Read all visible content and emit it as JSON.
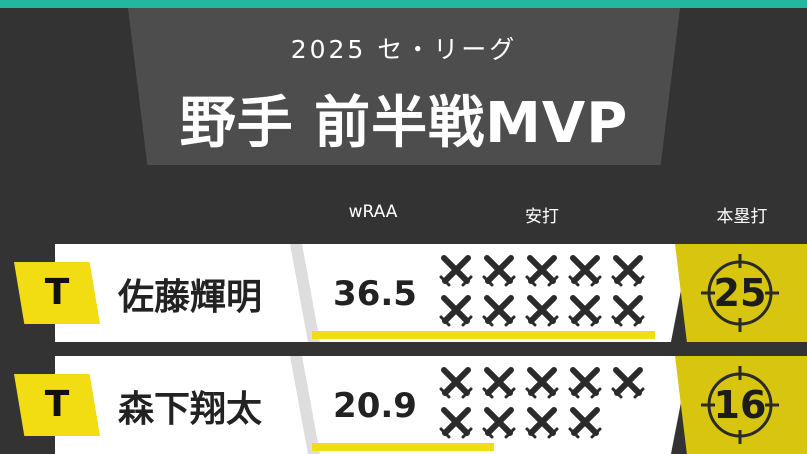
{
  "header": {
    "subtitle": "2025 セ・リーグ",
    "title": "野手 前半戦MVP"
  },
  "columns": {
    "wraa": "wRAA",
    "hits": "安打",
    "home_runs": "本塁打"
  },
  "colors": {
    "accent_teal": "#22b8a0",
    "accent_yellow": "#f2dd12",
    "background": "#333333"
  },
  "players": [
    {
      "team": "T",
      "name": "佐藤輝明",
      "wraa": "36.5",
      "wraa_fraction": 0.98,
      "hit_icons": 10,
      "home_runs": "25"
    },
    {
      "team": "T",
      "name": "森下翔太",
      "wraa": "20.9",
      "wraa_fraction": 0.52,
      "hit_icons": 9,
      "home_runs": "16"
    }
  ],
  "icons": {
    "hits": "crossed-bats-icon",
    "home_runs": "target-icon"
  }
}
